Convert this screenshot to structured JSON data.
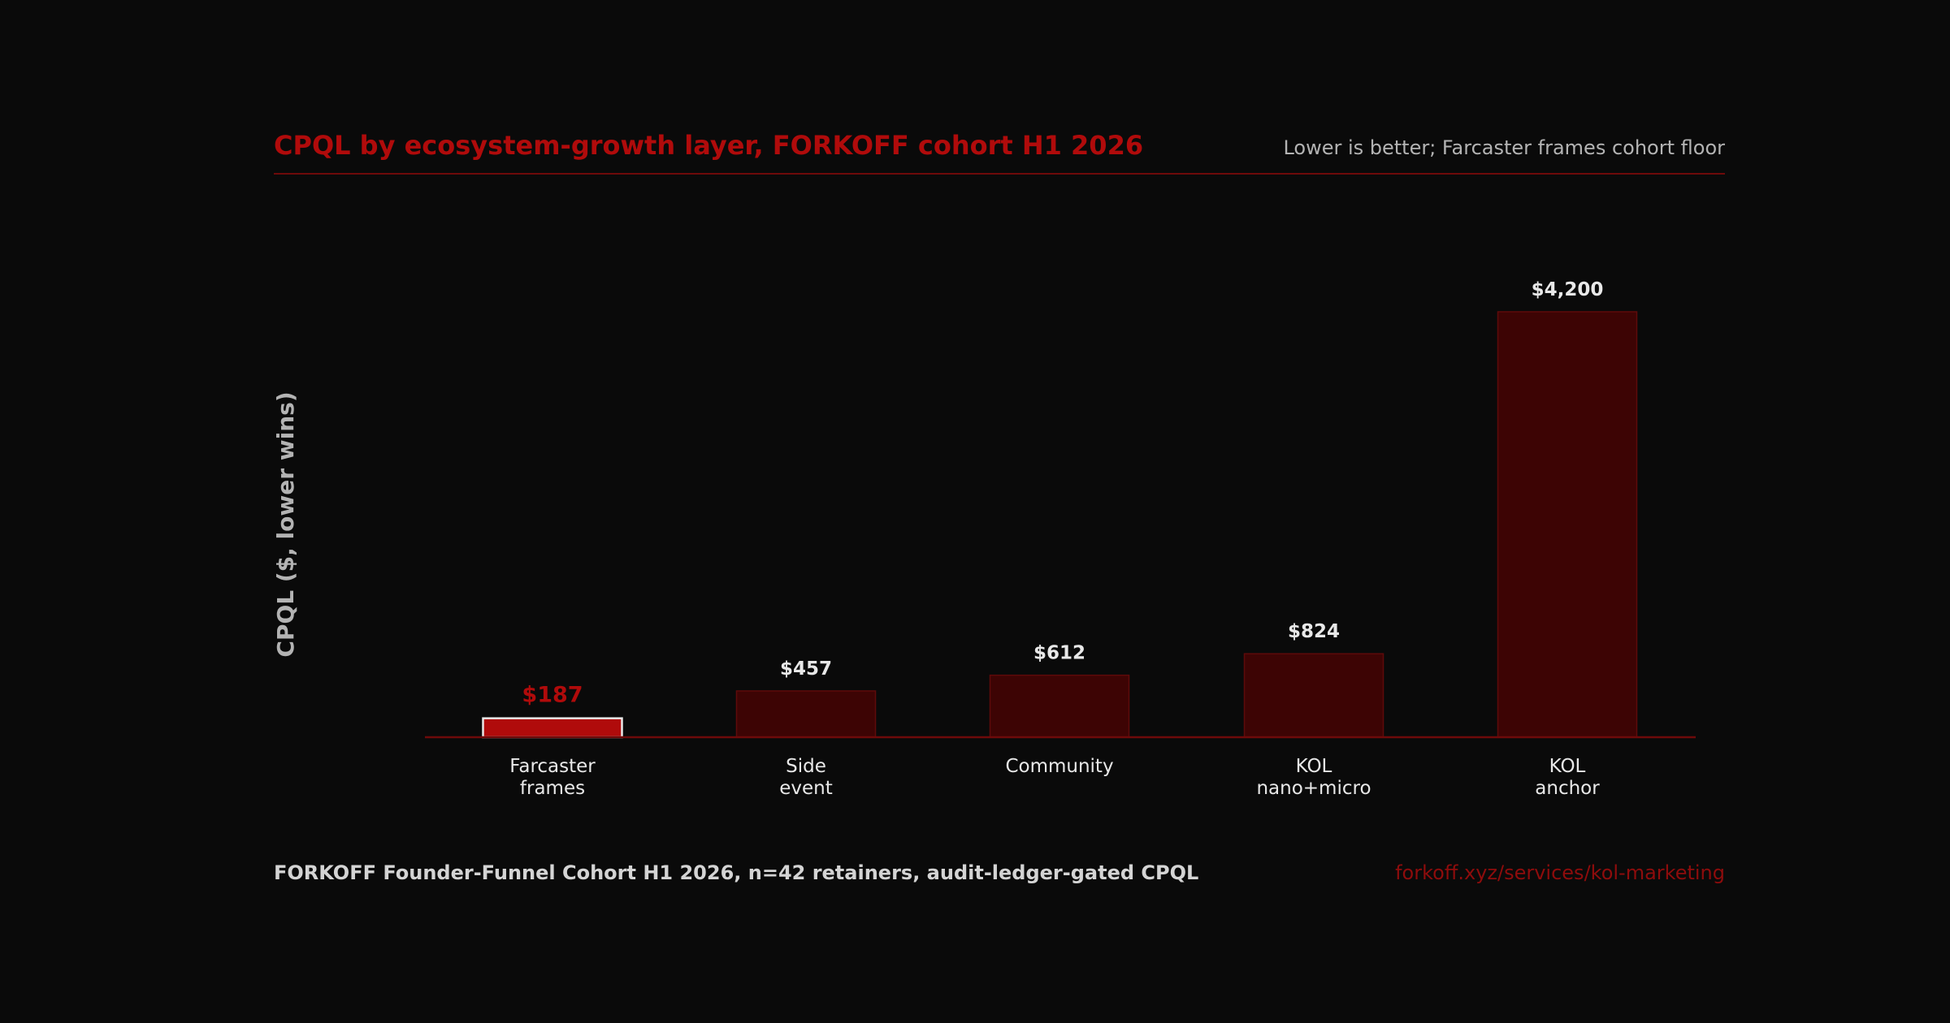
{
  "colors": {
    "background": "#0a0a0a",
    "accent": "#b00b0b",
    "bar_fill": "#3d0404",
    "bar_stroke": "#5e0a0a",
    "highlight_stroke": "#e8e8e8",
    "text_light": "#e8e8e8",
    "text_muted": "#b3b3b3",
    "footer_text": "#d4d4d4",
    "link": "#8e0c0c"
  },
  "header": {
    "title": "CPQL by ecosystem-growth layer, FORKOFF cohort H1 2026",
    "subtitle": "Lower is better; Farcaster frames cohort floor"
  },
  "footer": {
    "source": "FORKOFF Founder-Funnel Cohort H1 2026, n=42 retainers, audit-ledger-gated CPQL",
    "link": "forkoff.xyz/services/kol-marketing"
  },
  "chart_data": {
    "type": "bar",
    "title": "CPQL by ecosystem-growth layer, FORKOFF cohort H1 2026",
    "subtitle": "Lower is better; Farcaster frames cohort floor",
    "ylabel": "CPQL ($, lower wins)",
    "xlabel": "",
    "ylim": [
      0,
      4200
    ],
    "grid": false,
    "categories": [
      [
        "Farcaster",
        "frames"
      ],
      [
        "Side",
        "event"
      ],
      [
        "Community"
      ],
      [
        "KOL",
        "nano+micro"
      ],
      [
        "KOL",
        "anchor"
      ]
    ],
    "values": [
      187,
      457,
      612,
      824,
      4200
    ],
    "value_labels": [
      "$187",
      "$457",
      "$612",
      "$824",
      "$4,200"
    ],
    "highlight_index": 0
  }
}
